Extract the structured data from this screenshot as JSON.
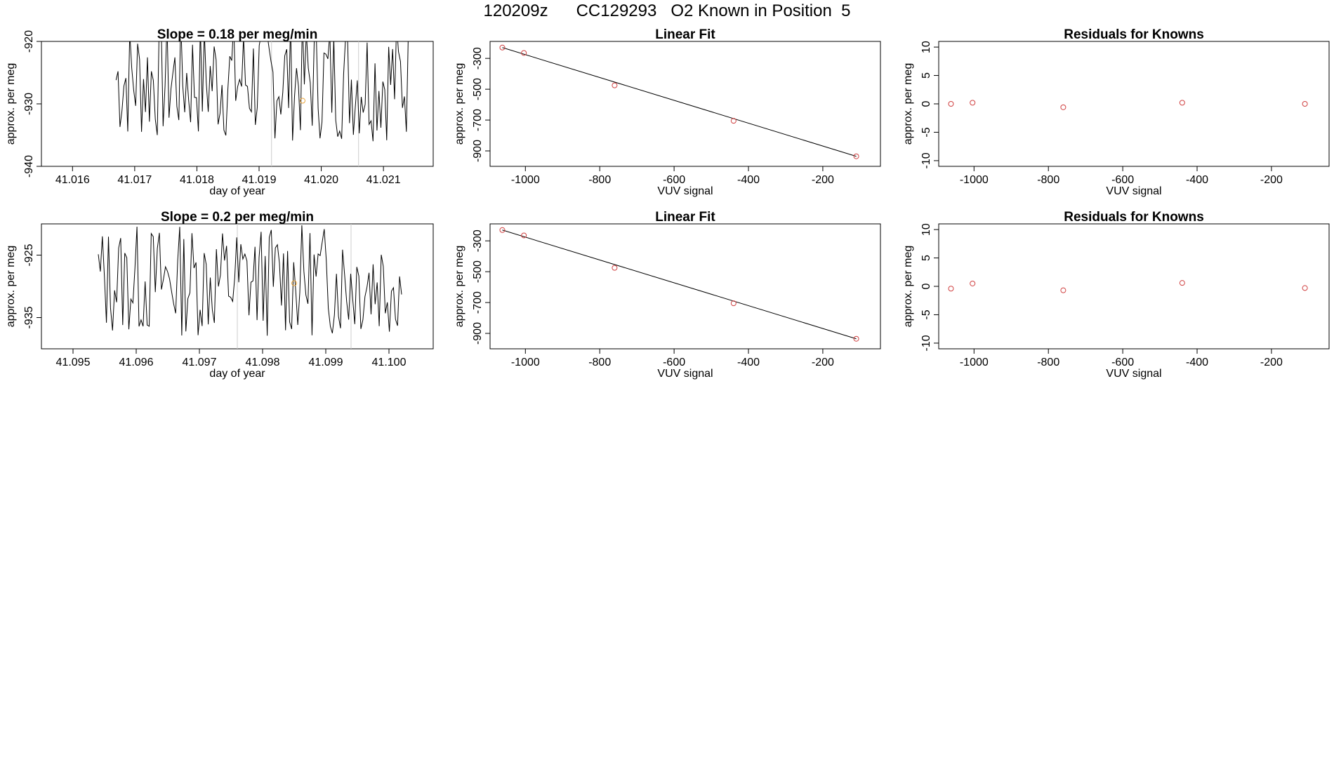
{
  "page_title": "120209z      CC129293   O2 Known in Position  5",
  "colors": {
    "line": "#000000",
    "known_point": "#e8a33a",
    "residual_point": "#d04040",
    "frame": "#000000"
  },
  "chart_data": [
    {
      "id": "ts1",
      "type": "line",
      "title": "Slope =  0.18  per meg/min",
      "xlabel": "day of year",
      "ylabel": "approx. per meg",
      "xlim": [
        41.0155,
        41.0218
      ],
      "ylim": [
        -940,
        -920
      ],
      "xticks": [
        "41.016",
        "41.017",
        "41.018",
        "41.019",
        "41.020",
        "41.021"
      ],
      "yticks": [
        "-920",
        "-930",
        "-940"
      ],
      "series": [
        {
          "seed": 7,
          "x_start": 41.0167,
          "x_end": 41.0214,
          "y_center": -926,
          "spread": 10,
          "count": 150
        }
      ],
      "markers": [
        {
          "x": 41.0197,
          "y": -929.5
        }
      ],
      "gap_lines": [
        41.0192,
        41.0206
      ]
    },
    {
      "id": "fit1",
      "type": "scatter",
      "title": "Linear Fit",
      "xlabel": "VUV signal",
      "ylabel": "approx. per meg",
      "xlim": [
        -1095,
        -45
      ],
      "ylim": [
        -1000,
        -190
      ],
      "xticks": [
        "-1000",
        "-800",
        "-600",
        "-400",
        "-200"
      ],
      "yticks": [
        "-300",
        "-500",
        "-700",
        "-900"
      ],
      "points": [
        [
          -1062,
          -230
        ],
        [
          -1004,
          -265
        ],
        [
          -760,
          -475
        ],
        [
          -440,
          -705
        ],
        [
          -110,
          -935
        ]
      ],
      "fit_line": [
        [
          -1062,
          -230
        ],
        [
          -110,
          -935
        ]
      ]
    },
    {
      "id": "res1",
      "type": "scatter",
      "title": "Residuals for Knowns",
      "xlabel": "VUV signal",
      "ylabel": "approx. per meg",
      "xlim": [
        -1095,
        -45
      ],
      "ylim": [
        -11,
        11
      ],
      "xticks": [
        "-1000",
        "-800",
        "-600",
        "-400",
        "-200"
      ],
      "yticks": [
        "10",
        "5",
        "0",
        "-5",
        "-10"
      ],
      "points": [
        [
          -1062,
          0.0
        ],
        [
          -1004,
          0.2
        ],
        [
          -760,
          -0.6
        ],
        [
          -440,
          0.2
        ],
        [
          -110,
          0.0
        ]
      ]
    },
    {
      "id": "ts2",
      "type": "line",
      "title": "Slope =  0.2  per meg/min",
      "xlabel": "day of year",
      "ylabel": "approx. per meg",
      "xlim": [
        41.0945,
        41.1007
      ],
      "ylim": [
        -940,
        -920
      ],
      "xticks": [
        "41.095",
        "41.096",
        "41.097",
        "41.098",
        "41.099",
        "41.100"
      ],
      "yticks": [
        "-925",
        "-935"
      ],
      "series": [
        {
          "seed": 13,
          "x_start": 41.0954,
          "x_end": 41.1002,
          "y_center": -929,
          "spread": 9,
          "count": 150
        }
      ],
      "markers": [
        {
          "x": 41.0985,
          "y": -929.5
        }
      ],
      "gap_lines": [
        41.0976,
        41.0994
      ]
    },
    {
      "id": "fit2",
      "type": "scatter",
      "title": "Linear Fit",
      "xlabel": "VUV signal",
      "ylabel": "approx. per meg",
      "xlim": [
        -1095,
        -45
      ],
      "ylim": [
        -1000,
        -190
      ],
      "xticks": [
        "-1000",
        "-800",
        "-600",
        "-400",
        "-200"
      ],
      "yticks": [
        "-300",
        "-500",
        "-700",
        "-900"
      ],
      "points": [
        [
          -1062,
          -230
        ],
        [
          -1004,
          -265
        ],
        [
          -760,
          -475
        ],
        [
          -440,
          -705
        ],
        [
          -110,
          -935
        ]
      ],
      "fit_line": [
        [
          -1062,
          -230
        ],
        [
          -110,
          -935
        ]
      ]
    },
    {
      "id": "res2",
      "type": "scatter",
      "title": "Residuals for Knowns",
      "xlabel": "VUV signal",
      "ylabel": "approx. per meg",
      "xlim": [
        -1095,
        -45
      ],
      "ylim": [
        -11,
        11
      ],
      "xticks": [
        "-1000",
        "-800",
        "-600",
        "-400",
        "-200"
      ],
      "yticks": [
        "10",
        "5",
        "0",
        "-5",
        "-10"
      ],
      "points": [
        [
          -1062,
          -0.4
        ],
        [
          -1004,
          0.5
        ],
        [
          -760,
          -0.7
        ],
        [
          -440,
          0.6
        ],
        [
          -110,
          -0.3
        ]
      ]
    }
  ]
}
